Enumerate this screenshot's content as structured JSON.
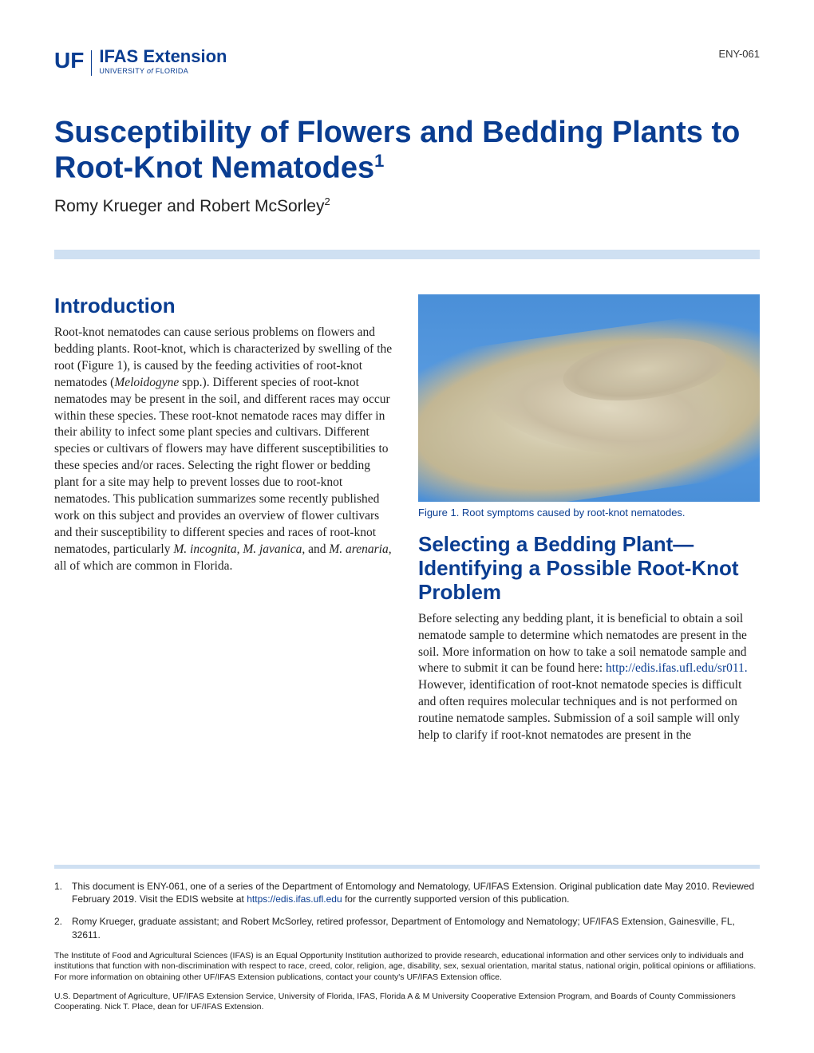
{
  "header": {
    "logo_uf": "UF",
    "logo_ifas": "IFAS Extension",
    "logo_sub_pre": "UNIVERSITY ",
    "logo_sub_of": "of",
    "logo_sub_post": " FLORIDA",
    "doc_id": "ENY-061"
  },
  "title": "Susceptibility of Flowers and Bedding Plants to Root-Knot Nematodes",
  "title_sup": "1",
  "authors": "Romy Krueger and Robert McSorley",
  "authors_sup": "2",
  "left": {
    "heading": "Introduction",
    "para1_a": "Root-knot nematodes can cause serious problems on flowers and bedding plants. Root-knot, which is characterized by swelling of the root (Figure 1), is caused by the feeding activities of root-knot nematodes (",
    "para1_italic1": "Meloidogyne",
    "para1_b": " spp.). Different species of root-knot nematodes may be present in the soil, and different races may occur within these species. These root-knot nematode races may differ in their ability to infect some plant species and cultivars. Different species or cultivars of flowers may have different susceptibilities to these species and/or races. Selecting the right flower or bedding plant for a site may help to prevent losses due to root-knot nematodes. This publication summarizes some recently published work on this subject and provides an overview of flower cultivars and their susceptibility to different species and races of root-knot nematodes, particularly ",
    "para1_italic2": "M. incognita, M. javanica,",
    "para1_c": " and ",
    "para1_italic3": "M. arenaria",
    "para1_d": ", all of which are common in Florida."
  },
  "right": {
    "figure_caption": "Figure 1. Root symptoms caused by root-knot nematodes.",
    "heading": "Selecting a Bedding Plant—Identifying a Possible Root-Knot Problem",
    "para1_a": "Before selecting any bedding plant, it is beneficial to obtain a soil nematode sample to determine which nematodes are present in the soil. More information on how to take a soil nematode sample and where to submit it can be found here: ",
    "para1_link": "http://edis.ifas.ufl.edu/sr011.",
    "para1_b": " However, identification of root-knot nematode species is difficult and often requires molecular techniques and is not performed on routine nematode samples. Submission of a soil sample will only help to clarify if root-knot nematodes are present in the"
  },
  "footnotes": {
    "f1_num": "1.",
    "f1_a": "This document is ENY-061, one of a series of the Department of Entomology and Nematology, UF/IFAS Extension. Original publication date May 2010. Reviewed February 2019. Visit the EDIS website at ",
    "f1_link": "https://edis.ifas.ufl.edu",
    "f1_b": " for the currently supported version of this publication.",
    "f2_num": "2.",
    "f2": "Romy Krueger, graduate assistant; and Robert McSorley, retired professor, Department of Entomology and Nematology; UF/IFAS Extension, Gainesville, FL, 32611."
  },
  "fineprint": {
    "p1": "The Institute of Food and Agricultural Sciences (IFAS) is an Equal Opportunity Institution authorized to provide research, educational information and other services only to individuals and institutions that function with non-discrimination with respect to race, creed, color, religion, age, disability, sex, sexual orientation, marital status, national origin, political opinions or affiliations. For more information on obtaining other UF/IFAS Extension publications, contact your county's UF/IFAS Extension office.",
    "p2": "U.S. Department of Agriculture, UF/IFAS Extension Service, University of Florida, IFAS, Florida A & M University Cooperative Extension Program, and Boards of County Commissioners Cooperating. Nick T. Place, dean for UF/IFAS Extension."
  },
  "colors": {
    "brand_blue": "#0a3d91",
    "light_blue_bar": "#cfe0f2",
    "text": "#222222",
    "bg": "#ffffff"
  }
}
